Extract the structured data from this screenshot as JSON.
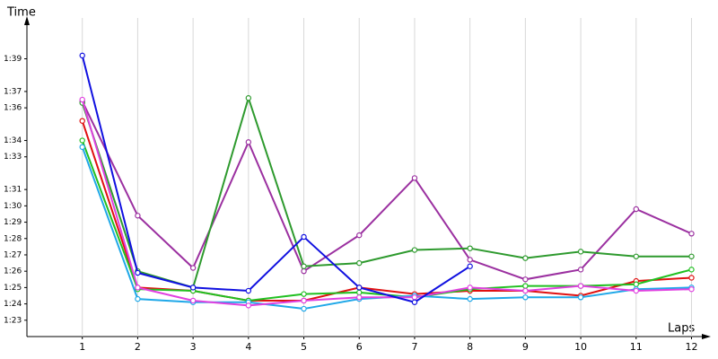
{
  "chart_data": {
    "type": "line",
    "y_label": "Time",
    "x_label": "Laps",
    "x": [
      1,
      2,
      3,
      4,
      5,
      6,
      7,
      8,
      9,
      10,
      11,
      12
    ],
    "xlim": [
      0,
      12.3
    ],
    "xticks": [
      1,
      2,
      3,
      4,
      5,
      6,
      7,
      8,
      9,
      10,
      11,
      12
    ],
    "ylim": [
      82,
      101.5
    ],
    "yticks": [
      {
        "value": 83,
        "label": "1:23"
      },
      {
        "value": 84,
        "label": "1:24"
      },
      {
        "value": 85,
        "label": "1:25"
      },
      {
        "value": 86,
        "label": "1:26"
      },
      {
        "value": 87,
        "label": "1:27"
      },
      {
        "value": 88,
        "label": "1:28"
      },
      {
        "value": 89,
        "label": "1:29"
      },
      {
        "value": 90,
        "label": "1:30"
      },
      {
        "value": 91,
        "label": "1:31"
      },
      {
        "value": 93,
        "label": "1:33"
      },
      {
        "value": 94,
        "label": "1:34"
      },
      {
        "value": 96,
        "label": "1:36"
      },
      {
        "value": 97,
        "label": "1:37"
      },
      {
        "value": 99,
        "label": "1:39"
      }
    ],
    "grid": "x",
    "series": [
      {
        "color": "#9b30a0",
        "values": [
          96.4,
          89.4,
          86.2,
          93.9,
          86.0,
          88.2,
          91.7,
          86.7,
          85.5,
          86.1,
          89.8,
          88.3
        ]
      },
      {
        "color": "#2e9a2e",
        "values": [
          96.3,
          86.0,
          85.0,
          96.6,
          86.3,
          86.5,
          87.3,
          87.4,
          86.8,
          87.2,
          86.9,
          86.9
        ]
      },
      {
        "color": "#e01010",
        "values": [
          95.2,
          85.0,
          84.8,
          84.2,
          84.2,
          85.0,
          84.6,
          84.8,
          84.8,
          84.5,
          85.4,
          85.6
        ]
      },
      {
        "color": "#20c020",
        "values": [
          94.0,
          84.9,
          84.8,
          84.2,
          84.6,
          84.7,
          84.4,
          84.9,
          85.1,
          85.1,
          85.2,
          86.1
        ]
      },
      {
        "color": "#20a8e8",
        "values": [
          93.6,
          84.3,
          84.1,
          84.1,
          83.7,
          84.3,
          84.5,
          84.3,
          84.4,
          84.4,
          84.9,
          85.0
        ]
      },
      {
        "color": "#e040e0",
        "values": [
          96.5,
          85.0,
          84.2,
          83.9,
          84.2,
          84.4,
          84.4,
          85.0,
          84.8,
          85.1,
          84.8,
          84.9
        ]
      },
      {
        "color": "#1010e0",
        "values": [
          99.2,
          85.9,
          85.0,
          84.8,
          88.1,
          85.0,
          84.1,
          86.3,
          null,
          null,
          null,
          null
        ]
      }
    ]
  }
}
